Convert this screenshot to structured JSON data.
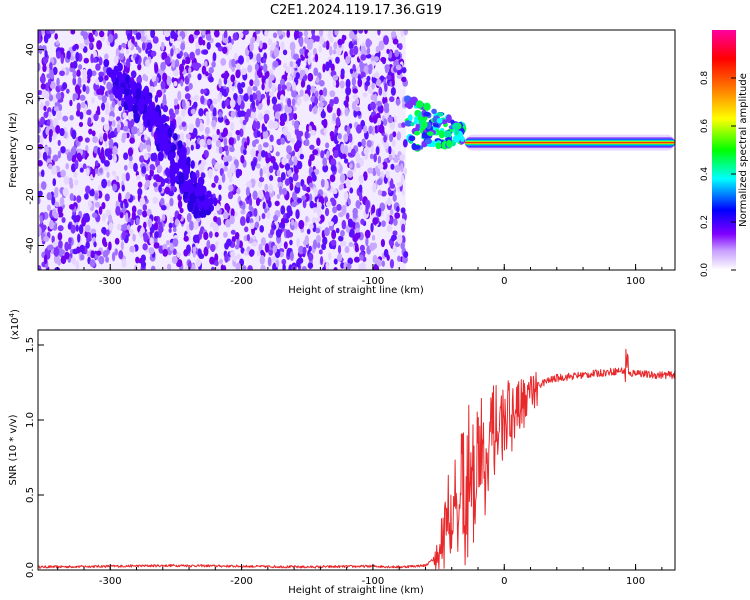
{
  "title": "C2E1.2024.119.17.36.G19",
  "chart_data": [
    {
      "type": "heatmap",
      "xlabel": "Height of straight line (km)",
      "ylabel": "Frequency (Hz)",
      "xlim": [
        -355,
        130
      ],
      "ylim": [
        -50,
        48
      ],
      "x_ticks": [
        -300,
        -200,
        -100,
        0,
        100
      ],
      "y_ticks": [
        -40,
        -20,
        0,
        20,
        40
      ],
      "colorbar": {
        "label": "Normalized spectral amplitude",
        "range": [
          0.0,
          1.0
        ],
        "ticks": [
          0.0,
          0.2,
          0.4,
          0.6,
          0.8
        ],
        "tick_labels": [
          "0.0",
          "0.2",
          "0.4",
          "0.6",
          "0.8"
        ],
        "colormap": [
          "#ffffff",
          "#8000ff",
          "#0000ff",
          "#00ffff",
          "#00ff00",
          "#ffff00",
          "#ff8000",
          "#ff0000",
          "#ff00c0"
        ]
      },
      "features": [
        {
          "description": "noise region",
          "x_range": [
            -355,
            -75
          ],
          "freq_range": [
            -50,
            48
          ],
          "amplitude": 0.1
        },
        {
          "description": "descending track",
          "x": [
            -300,
            -280,
            -260,
            -240,
            -225
          ],
          "freq": [
            30,
            20,
            5,
            -15,
            -25
          ],
          "amplitude": 0.2
        },
        {
          "description": "transition",
          "x_range": [
            -75,
            -30
          ],
          "freq_center": [
            10,
            5
          ],
          "amplitude": 0.45
        },
        {
          "description": "carrier line",
          "x_range": [
            -30,
            130
          ],
          "freq": 2,
          "amplitude": 0.9
        }
      ]
    },
    {
      "type": "line",
      "xlabel": "Height of straight line (km)",
      "ylabel": "SNR (10 * v/v)",
      "y_multiplier": "(x10",
      "y_multiplier_exp": "4",
      "xlim": [
        -355,
        130
      ],
      "ylim": [
        0.0,
        1.6
      ],
      "x_ticks": [
        -300,
        -200,
        -100,
        0,
        100
      ],
      "y_ticks": [
        0.0,
        0.5,
        1.0,
        1.5
      ],
      "y_tick_labels": [
        "0.0",
        "0.5",
        "1.0",
        "1.5"
      ],
      "series": [
        {
          "color": "#e8282a",
          "x": [
            -355,
            -300,
            -250,
            -200,
            -150,
            -100,
            -80,
            -60,
            -50,
            -45,
            -40,
            -35,
            -30,
            -25,
            -20,
            -15,
            -10,
            -5,
            0,
            5,
            10,
            20,
            30,
            40,
            60,
            80,
            90,
            95,
            100,
            110,
            120,
            130
          ],
          "y": [
            0.02,
            0.025,
            0.03,
            0.025,
            0.02,
            0.025,
            0.02,
            0.03,
            0.1,
            0.3,
            0.45,
            0.55,
            0.65,
            0.7,
            0.78,
            0.82,
            0.9,
            0.95,
            1.0,
            1.05,
            1.1,
            1.2,
            1.25,
            1.28,
            1.3,
            1.32,
            1.33,
            1.3,
            1.32,
            1.3,
            1.3,
            1.3
          ]
        }
      ]
    }
  ]
}
